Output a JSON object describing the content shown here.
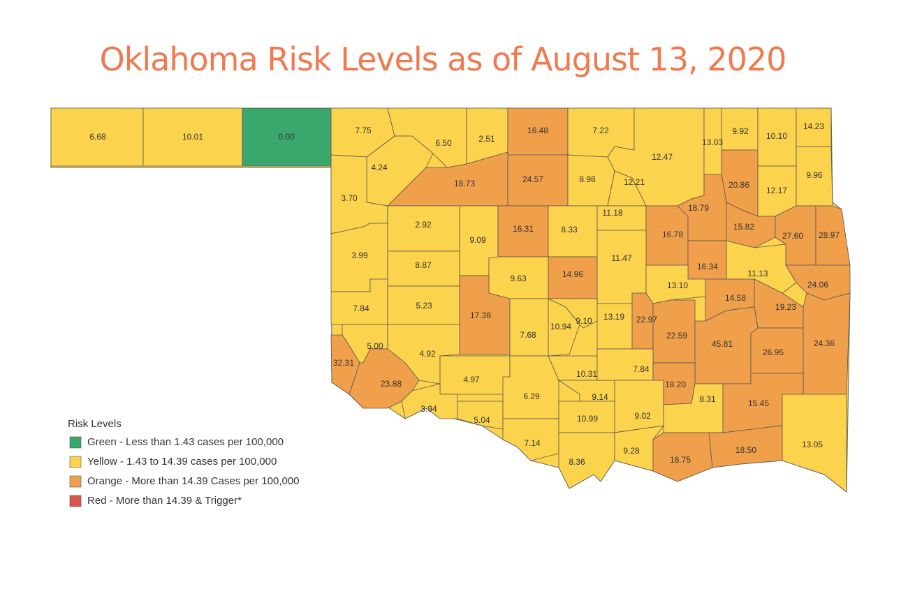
{
  "title": "Oklahoma Risk Levels as of August 13, 2020",
  "legend": {
    "title": "Risk Levels",
    "items": [
      {
        "label": "Green - Less than 1.43 cases per 100,000",
        "color": "#3aa76d"
      },
      {
        "label": "Yellow - 1.43 to 14.39 cases per 100,000",
        "color": "#fcd34d"
      },
      {
        "label": "Orange - More than 14.39 Cases per 100,000",
        "color": "#f0a04b"
      },
      {
        "label": "Red - More than 14.39 & Trigger*",
        "color": "#d9534f"
      }
    ]
  },
  "counties": [
    {
      "label": "6.68",
      "level": 1
    },
    {
      "label": "10.01",
      "level": 1
    },
    {
      "label": "0.00",
      "level": 0
    },
    {
      "label": "7.75",
      "level": 1
    },
    {
      "label": "6.50",
      "level": 1
    },
    {
      "label": "2.51",
      "level": 1
    },
    {
      "label": "16.48",
      "level": 2
    },
    {
      "label": "7.22",
      "level": 1
    },
    {
      "label": "12.47",
      "level": 1
    },
    {
      "label": "13.03",
      "level": 1
    },
    {
      "label": "9.92",
      "level": 1
    },
    {
      "label": "10.10",
      "level": 1
    },
    {
      "label": "14.23",
      "level": 1
    },
    {
      "label": "4.24",
      "level": 1
    },
    {
      "label": "18.73",
      "level": 2
    },
    {
      "label": "24.57",
      "level": 2
    },
    {
      "label": "8.98",
      "level": 1
    },
    {
      "label": "12.21",
      "level": 1
    },
    {
      "label": "20.86",
      "level": 2
    },
    {
      "label": "12.17",
      "level": 1
    },
    {
      "label": "9.96",
      "level": 1
    },
    {
      "label": "3.70",
      "level": 1
    },
    {
      "label": "2.92",
      "level": 1
    },
    {
      "label": "9.09",
      "level": 1
    },
    {
      "label": "16.31",
      "level": 2
    },
    {
      "label": "8.33",
      "level": 1
    },
    {
      "label": "11.18",
      "level": 1
    },
    {
      "label": "16.78",
      "level": 2
    },
    {
      "label": "18.79",
      "level": 2
    },
    {
      "label": "15.82",
      "level": 2
    },
    {
      "label": "27.60",
      "level": 2
    },
    {
      "label": "28.97",
      "level": 2
    },
    {
      "label": "3.99",
      "level": 1
    },
    {
      "label": "8.87",
      "level": 1
    },
    {
      "label": "9.63",
      "level": 1
    },
    {
      "label": "14.96",
      "level": 2
    },
    {
      "label": "11.47",
      "level": 1
    },
    {
      "label": "16.34",
      "level": 2
    },
    {
      "label": "11.13",
      "level": 1
    },
    {
      "label": "24.06",
      "level": 2
    },
    {
      "label": "13.10",
      "level": 1
    },
    {
      "label": "7.84",
      "level": 1
    },
    {
      "label": "5.23",
      "level": 1
    },
    {
      "label": "17.38",
      "level": 2
    },
    {
      "label": "7.68",
      "level": 1
    },
    {
      "label": "10.94",
      "level": 1
    },
    {
      "label": "9.10",
      "level": 1
    },
    {
      "label": "13.19",
      "level": 1
    },
    {
      "label": "22.97",
      "level": 2
    },
    {
      "label": "14.58",
      "level": 2
    },
    {
      "label": "19.23",
      "level": 2
    },
    {
      "label": "22.59",
      "level": 2
    },
    {
      "label": "45.81",
      "level": 2
    },
    {
      "label": "26.95",
      "level": 2
    },
    {
      "label": "24.36",
      "level": 2
    },
    {
      "label": "32.31",
      "level": 2
    },
    {
      "label": "5.00",
      "level": 1
    },
    {
      "label": "4.92",
      "level": 1
    },
    {
      "label": "23.88",
      "level": 2
    },
    {
      "label": "4.97",
      "level": 1
    },
    {
      "label": "3.94",
      "level": 1
    },
    {
      "label": "5.04",
      "level": 1
    },
    {
      "label": "6.29",
      "level": 1
    },
    {
      "label": "7.14",
      "level": 1
    },
    {
      "label": "10.31",
      "level": 1
    },
    {
      "label": "9.14",
      "level": 1
    },
    {
      "label": "10.99",
      "level": 1
    },
    {
      "label": "8.36",
      "level": 1
    },
    {
      "label": "7.84",
      "level": 1
    },
    {
      "label": "9.02",
      "level": 1
    },
    {
      "label": "9.28",
      "level": 1
    },
    {
      "label": "18.20",
      "level": 2
    },
    {
      "label": "8.31",
      "level": 1
    },
    {
      "label": "18.75",
      "level": 2
    },
    {
      "label": "15.45",
      "level": 2
    },
    {
      "label": "18.50",
      "level": 2
    },
    {
      "label": "13.05",
      "level": 1
    }
  ]
}
